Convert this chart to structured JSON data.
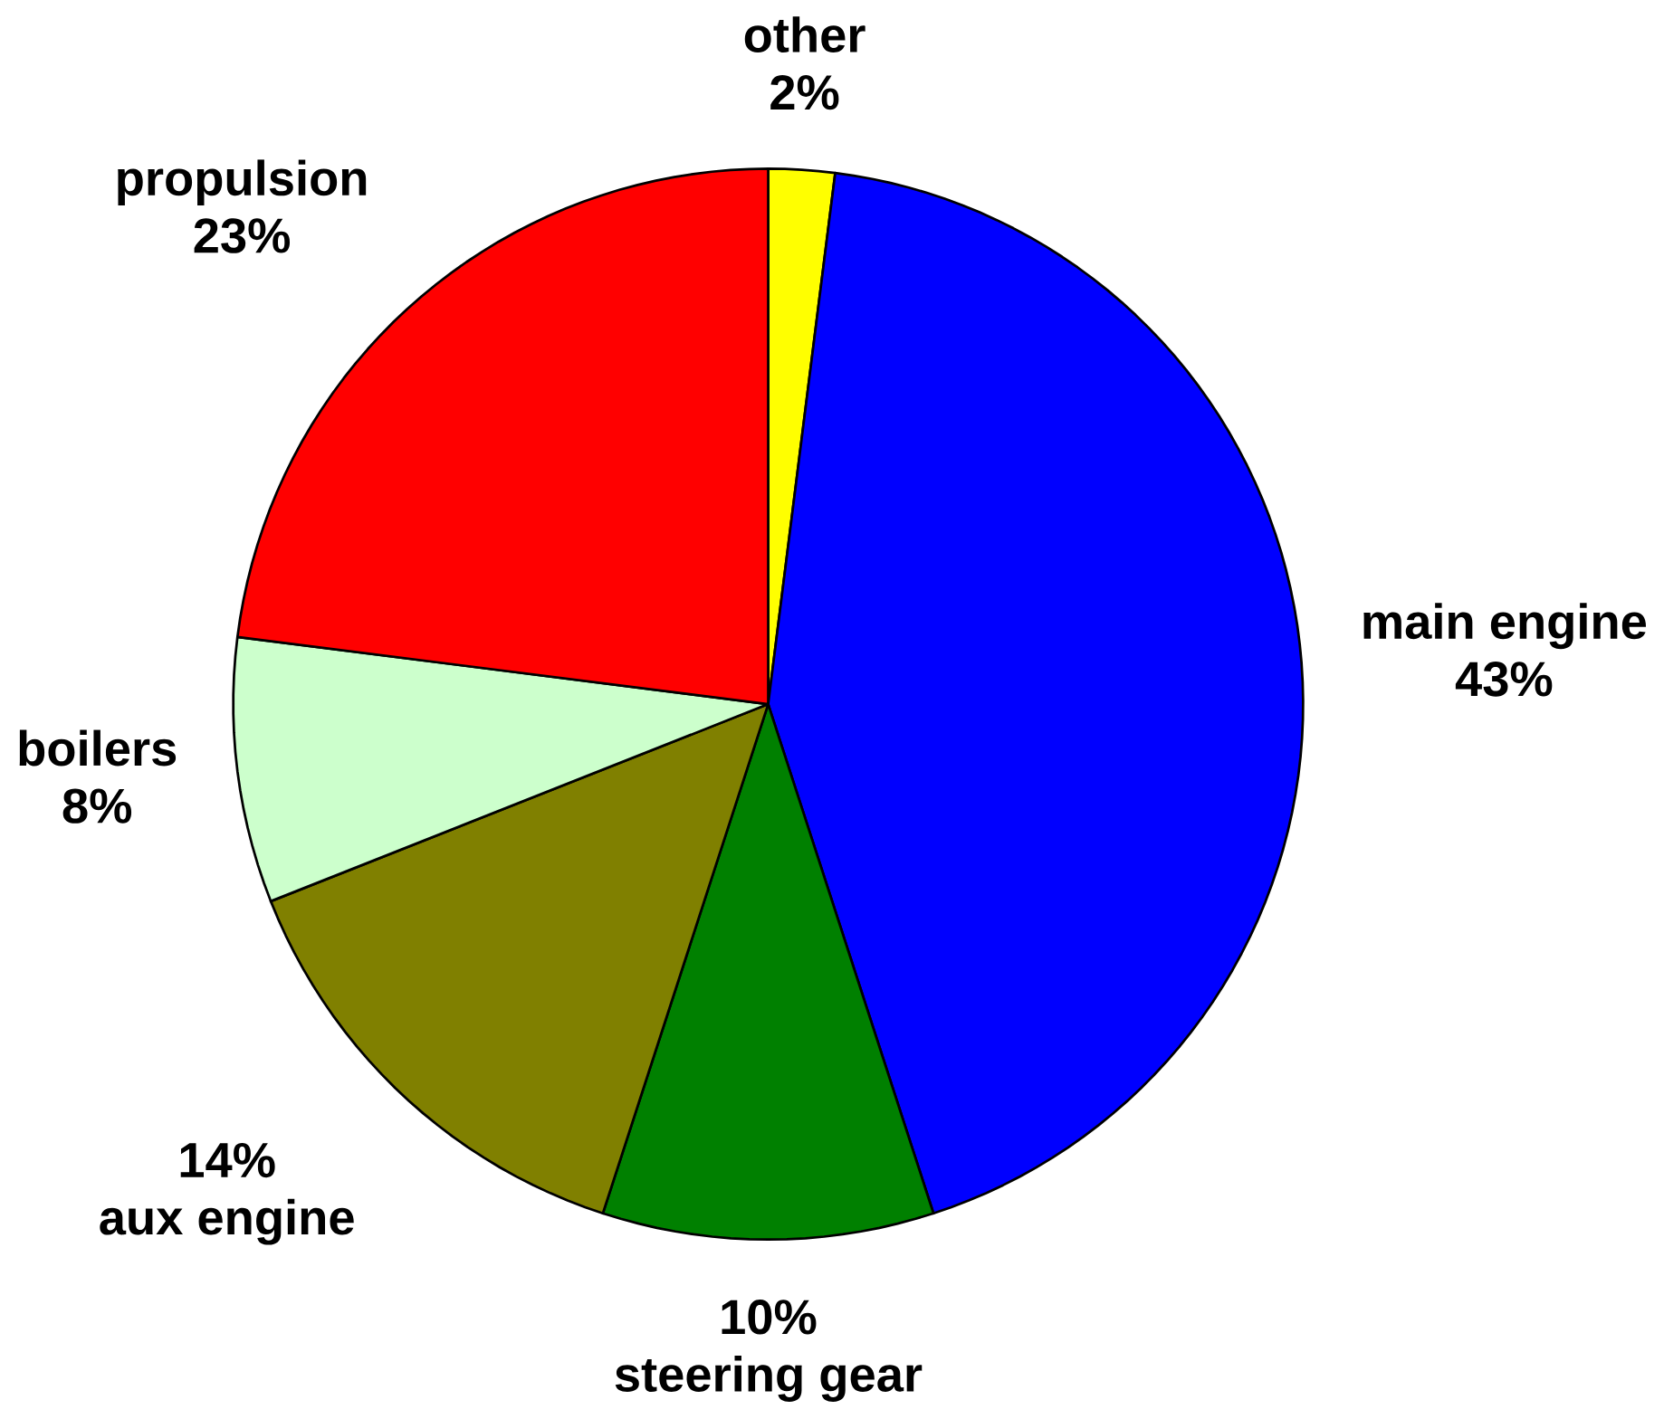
{
  "chart_data": {
    "type": "pie",
    "categories": [
      "other",
      "main engine",
      "steering gear",
      "aux engine",
      "boilers",
      "propulsion"
    ],
    "values": [
      2,
      43,
      10,
      14,
      8,
      23
    ],
    "value_labels": [
      "2%",
      "43%",
      "10%",
      "14%",
      "8%",
      "23%"
    ],
    "colors": [
      "#ffff00",
      "#0000ff",
      "#008000",
      "#808000",
      "#ccffcc",
      "#ff0000"
    ]
  }
}
